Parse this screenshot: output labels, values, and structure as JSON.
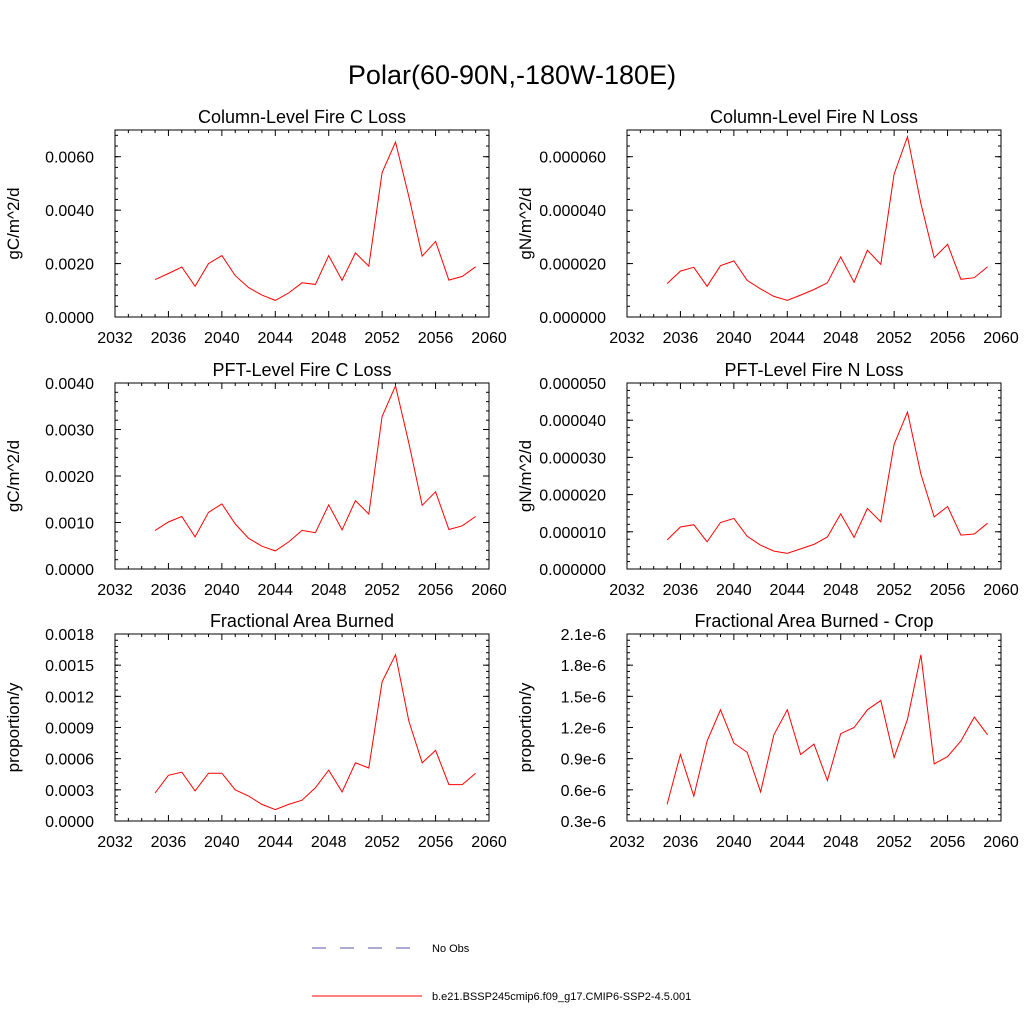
{
  "figure": {
    "title": "Polar(60-90N,-180W-180E)"
  },
  "legend": {
    "entries": [
      {
        "label": "No Obs",
        "color": "#5555aa",
        "dash": true
      },
      {
        "label": "b.e21.BSSP245cmip6.f09_g17.CMIP6-SSP2-4.5.001",
        "color": "#ff0000",
        "dash": false
      }
    ]
  },
  "chart_data": [
    {
      "type": "line",
      "title": "Column-Level Fire C Loss",
      "ylabel": "gC/m^2/d",
      "xlim": [
        2032,
        2060
      ],
      "ylim": [
        0,
        0.007
      ],
      "xticks": [
        2032,
        2036,
        2040,
        2044,
        2048,
        2052,
        2056,
        2060
      ],
      "yticks": [
        0,
        0.002,
        0.004,
        0.006
      ],
      "ytick_labels": [
        "0.0000",
        "0.0020",
        "0.0040",
        "0.0060"
      ],
      "color": "#ff0000",
      "x": [
        2035,
        2036,
        2037,
        2038,
        2039,
        2040,
        2041,
        2042,
        2043,
        2044,
        2045,
        2046,
        2047,
        2048,
        2049,
        2050,
        2051,
        2052,
        2053,
        2054,
        2055,
        2056,
        2057,
        2058,
        2059
      ],
      "y": [
        0.0014,
        0.00163,
        0.00187,
        0.00115,
        0.002,
        0.0023,
        0.00155,
        0.0011,
        0.00082,
        0.00062,
        0.0009,
        0.00128,
        0.00122,
        0.0023,
        0.00137,
        0.0024,
        0.0019,
        0.0054,
        0.00655,
        0.0045,
        0.00228,
        0.00283,
        0.00138,
        0.00152,
        0.00188
      ]
    },
    {
      "type": "line",
      "title": "Column-Level Fire N Loss",
      "ylabel": "gN/m^2/d",
      "xlim": [
        2032,
        2060
      ],
      "ylim": [
        0,
        7e-05
      ],
      "xticks": [
        2032,
        2036,
        2040,
        2044,
        2048,
        2052,
        2056,
        2060
      ],
      "yticks": [
        0,
        2e-05,
        4e-05,
        6e-05
      ],
      "ytick_labels": [
        "0.000000",
        "0.000020",
        "0.000040",
        "0.000060"
      ],
      "color": "#ff0000",
      "x": [
        2035,
        2036,
        2037,
        2038,
        2039,
        2040,
        2041,
        2042,
        2043,
        2044,
        2045,
        2046,
        2047,
        2048,
        2049,
        2050,
        2051,
        2052,
        2053,
        2054,
        2055,
        2056,
        2057,
        2058,
        2059
      ],
      "y": [
        1.25e-05,
        1.72e-05,
        1.86e-05,
        1.15e-05,
        1.92e-05,
        2.1e-05,
        1.37e-05,
        1.05e-05,
        7.7e-06,
        6.2e-06,
        8.2e-06,
        1.03e-05,
        1.28e-05,
        2.25e-05,
        1.3e-05,
        2.5e-05,
        1.97e-05,
        5.35e-05,
        6.75e-05,
        4.25e-05,
        2.22e-05,
        2.72e-05,
        1.41e-05,
        1.47e-05,
        1.88e-05
      ]
    },
    {
      "type": "line",
      "title": "PFT-Level Fire C Loss",
      "ylabel": "gC/m^2/d",
      "xlim": [
        2032,
        2060
      ],
      "ylim": [
        0,
        0.004
      ],
      "xticks": [
        2032,
        2036,
        2040,
        2044,
        2048,
        2052,
        2056,
        2060
      ],
      "yticks": [
        0,
        0.001,
        0.002,
        0.003,
        0.004
      ],
      "ytick_labels": [
        "0.0000",
        "0.0010",
        "0.0020",
        "0.0030",
        "0.0040"
      ],
      "color": "#ff0000",
      "x": [
        2035,
        2036,
        2037,
        2038,
        2039,
        2040,
        2041,
        2042,
        2043,
        2044,
        2045,
        2046,
        2047,
        2048,
        2049,
        2050,
        2051,
        2052,
        2053,
        2054,
        2055,
        2056,
        2057,
        2058,
        2059
      ],
      "y": [
        0.00083,
        0.00101,
        0.00113,
        0.00069,
        0.00122,
        0.0014,
        0.00097,
        0.00066,
        0.00049,
        0.00039,
        0.00058,
        0.00083,
        0.00078,
        0.00138,
        0.00084,
        0.00147,
        0.00118,
        0.00328,
        0.00394,
        0.0027,
        0.00137,
        0.00166,
        0.00085,
        0.00093,
        0.00113
      ]
    },
    {
      "type": "line",
      "title": "PFT-Level Fire N Loss",
      "ylabel": "gN/m^2/d",
      "xlim": [
        2032,
        2060
      ],
      "ylim": [
        0,
        5e-05
      ],
      "xticks": [
        2032,
        2036,
        2040,
        2044,
        2048,
        2052,
        2056,
        2060
      ],
      "yticks": [
        0,
        1e-05,
        2e-05,
        3e-05,
        4e-05,
        5e-05
      ],
      "ytick_labels": [
        "0.000000",
        "0.000010",
        "0.000020",
        "0.000030",
        "0.000040",
        "0.000050"
      ],
      "color": "#ff0000",
      "x": [
        2035,
        2036,
        2037,
        2038,
        2039,
        2040,
        2041,
        2042,
        2043,
        2044,
        2045,
        2046,
        2047,
        2048,
        2049,
        2050,
        2051,
        2052,
        2053,
        2054,
        2055,
        2056,
        2057,
        2058,
        2059
      ],
      "y": [
        7.8e-06,
        1.13e-05,
        1.19e-05,
        7.3e-06,
        1.25e-05,
        1.36e-05,
        8.8e-06,
        6.4e-06,
        4.8e-06,
        4.2e-06,
        5.4e-06,
        6.6e-06,
        8.6e-06,
        1.48e-05,
        8.5e-06,
        1.63e-05,
        1.27e-05,
        3.35e-05,
        4.22e-05,
        2.55e-05,
        1.4e-05,
        1.68e-05,
        9.1e-06,
        9.4e-06,
        1.23e-05
      ]
    },
    {
      "type": "line",
      "title": "Fractional Area Burned",
      "ylabel": "proportion/y",
      "xlim": [
        2032,
        2060
      ],
      "ylim": [
        0,
        0.0018
      ],
      "xticks": [
        2032,
        2036,
        2040,
        2044,
        2048,
        2052,
        2056,
        2060
      ],
      "yticks": [
        0,
        0.0003,
        0.0006,
        0.0009,
        0.0012,
        0.0015,
        0.0018
      ],
      "ytick_labels": [
        "0.0000",
        "0.0003",
        "0.0006",
        "0.0009",
        "0.0012",
        "0.0015",
        "0.0018"
      ],
      "color": "#ff0000",
      "x": [
        2035,
        2036,
        2037,
        2038,
        2039,
        2040,
        2041,
        2042,
        2043,
        2044,
        2045,
        2046,
        2047,
        2048,
        2049,
        2050,
        2051,
        2052,
        2053,
        2054,
        2055,
        2056,
        2057,
        2058,
        2059
      ],
      "y": [
        0.00027,
        0.00044,
        0.00047,
        0.00029,
        0.00046,
        0.00046,
        0.0003,
        0.00024,
        0.00016,
        0.00011,
        0.00016,
        0.0002,
        0.00032,
        0.00049,
        0.00028,
        0.00056,
        0.00051,
        0.00134,
        0.0016,
        0.00096,
        0.00056,
        0.00068,
        0.00035,
        0.00035,
        0.00046
      ]
    },
    {
      "type": "line",
      "title": "Fractional Area Burned - Crop",
      "ylabel": "proportion/y",
      "xlim": [
        2032,
        2060
      ],
      "ylim": [
        3e-07,
        2.1e-06
      ],
      "xticks": [
        2032,
        2036,
        2040,
        2044,
        2048,
        2052,
        2056,
        2060
      ],
      "yticks": [
        3e-07,
        6e-07,
        9e-07,
        1.2e-06,
        1.5e-06,
        1.8e-06,
        2.1e-06
      ],
      "ytick_labels": [
        "0.3e-6",
        "0.6e-6",
        "0.9e-6",
        "1.2e-6",
        "1.5e-6",
        "1.8e-6",
        "2.1e-6"
      ],
      "color": "#ff0000",
      "x": [
        2035,
        2036,
        2037,
        2038,
        2039,
        2040,
        2041,
        2042,
        2043,
        2044,
        2045,
        2046,
        2047,
        2048,
        2049,
        2050,
        2051,
        2052,
        2053,
        2054,
        2055,
        2056,
        2057,
        2058,
        2059
      ],
      "y": [
        4.6e-07,
        9.4e-07,
        5.4e-07,
        1.07e-06,
        1.37e-06,
        1.05e-06,
        9.6e-07,
        5.8e-07,
        1.13e-06,
        1.37e-06,
        9.4e-07,
        1.04e-06,
        6.9e-07,
        1.14e-06,
        1.2e-06,
        1.37e-06,
        1.46e-06,
        9.1e-07,
        1.28e-06,
        1.9e-06,
        8.5e-07,
        9.2e-07,
        1.07e-06,
        1.3e-06,
        1.13e-06
      ]
    }
  ]
}
